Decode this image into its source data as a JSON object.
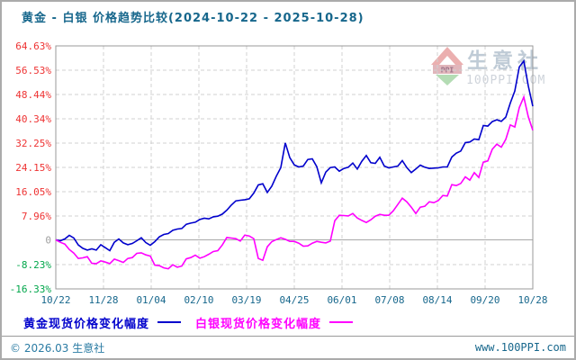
{
  "title": "黄金 - 白银 价格趋势比较(2024-10-22 - 2025-10-28)",
  "legend": [
    {
      "label": "黄金现货价格变化幅度",
      "color": "#0000cc"
    },
    {
      "label": "白银现货价格变化幅度",
      "color": "#ff00ff"
    }
  ],
  "footer": {
    "left": "© 2026.03 生意社",
    "right": "www.100PPI.com"
  },
  "watermark": {
    "brand": "生意社",
    "domain": "100PPI.COM",
    "logo_text": "PPI"
  },
  "colors": {
    "title": "#17678c",
    "axis_date": "#17678c",
    "grid": "#d0d0d0",
    "zero_line": "#a8a8a8",
    "plot_border": "#999999"
  },
  "chart_data": {
    "type": "line",
    "title": "黄金 - 白银 价格趋势比较(2024-10-22 - 2025-10-28)",
    "date_range": {
      "start": "2024-10-22",
      "end": "2025-10-28"
    },
    "grid": "dashed",
    "legend_position": "bottom",
    "ylim": [
      -16.33,
      64.63
    ],
    "y_ticks": [
      {
        "label": "64.63%",
        "value": 64.63,
        "color": "#ee3333"
      },
      {
        "label": "56.53%",
        "value": 56.53,
        "color": "#ee3333"
      },
      {
        "label": "48.44%",
        "value": 48.44,
        "color": "#ee3333"
      },
      {
        "label": "40.34%",
        "value": 40.34,
        "color": "#ee3333"
      },
      {
        "label": "32.25%",
        "value": 32.25,
        "color": "#ee3333"
      },
      {
        "label": "24.15%",
        "value": 24.15,
        "color": "#ee3333"
      },
      {
        "label": "16.05%",
        "value": 16.05,
        "color": "#ee3333"
      },
      {
        "label": "7.96%",
        "value": 7.96,
        "color": "#ee3333"
      },
      {
        "label": "0",
        "value": 0,
        "color": "#a0a0a0"
      },
      {
        "label": "-8.23%",
        "value": -8.23,
        "color": "#00a64a"
      },
      {
        "label": "-16.33%",
        "value": -16.33,
        "color": "#00a64a"
      }
    ],
    "x_ticks": [
      "10/22",
      "11/28",
      "01/04",
      "02/10",
      "03/19",
      "04/25",
      "06/01",
      "07/08",
      "08/14",
      "09/20",
      "10/28"
    ],
    "series": [
      {
        "name": "黄金现货价格变化幅度",
        "color": "#0000cc",
        "values": [
          0,
          -0.3,
          0.3,
          1.5,
          0.6,
          -1.7,
          -2.8,
          -3.4,
          -3,
          -3.4,
          -1.6,
          -2.6,
          -3.6,
          -0.8,
          0.3,
          -1,
          -1.6,
          -1.2,
          -0.3,
          0.7,
          -0.9,
          -1.8,
          -0.6,
          1,
          1.8,
          2.1,
          3.2,
          3.6,
          3.8,
          5.2,
          5.6,
          5.9,
          6.8,
          7.2,
          7,
          7.7,
          7.9,
          8.6,
          9.9,
          11.6,
          13,
          13.2,
          13.4,
          13.7,
          15.6,
          18.3,
          18.7,
          15.8,
          17.9,
          21.2,
          24.1,
          32.3,
          27.4,
          25,
          24.3,
          24.6,
          26.8,
          27,
          24.4,
          19,
          22.6,
          24.1,
          24.3,
          22.9,
          23.8,
          24.2,
          25.6,
          23.6,
          26.2,
          28.1,
          25.7,
          25.5,
          27.5,
          24.6,
          24,
          24.3,
          24.6,
          26.4,
          24.1,
          22.4,
          23.6,
          24.9,
          24.2,
          23.8,
          23.9,
          24,
          24.3,
          24.3,
          27.6,
          28.9,
          29.6,
          32.4,
          32.6,
          33.6,
          33.4,
          38.1,
          37.9,
          39.4,
          40,
          39.5,
          40.9,
          45.6,
          49.6,
          57.6,
          59.6,
          51.3,
          44.5
        ]
      },
      {
        "name": "白银现货价格变化幅度",
        "color": "#ff00ff",
        "values": [
          0,
          -0.8,
          -1.4,
          -3.2,
          -4.4,
          -6.2,
          -6,
          -5.6,
          -7.8,
          -7.9,
          -7,
          -7.4,
          -7.9,
          -6.4,
          -6.9,
          -7.5,
          -6.2,
          -5.9,
          -4.5,
          -4.3,
          -5,
          -5.4,
          -8.4,
          -8.6,
          -9.3,
          -9.6,
          -8.3,
          -9.1,
          -8.7,
          -6.3,
          -5.9,
          -5.1,
          -6.1,
          -5.6,
          -4.8,
          -3.9,
          -3.6,
          -1.7,
          0.8,
          0.6,
          0.4,
          -0.4,
          1.6,
          1.3,
          0.4,
          -6.2,
          -6.8,
          -2.3,
          -0.6,
          0.1,
          0.7,
          0.2,
          -0.5,
          -0.5,
          -1.1,
          -2.1,
          -2,
          -1.1,
          -0.5,
          -0.8,
          -1,
          -0.4,
          6.4,
          8.2,
          8.1,
          8,
          8.8,
          7.3,
          6.5,
          5.8,
          6.7,
          7.9,
          8.5,
          8.2,
          8.2,
          9.7,
          11.8,
          13.9,
          12.7,
          10.9,
          8.8,
          10.9,
          11.2,
          12.7,
          12.4,
          13.1,
          14.8,
          14.6,
          18.4,
          18.1,
          18.8,
          21,
          19.9,
          22.4,
          20.8,
          25.9,
          26.3,
          30.2,
          31.9,
          30.9,
          33.5,
          38.3,
          37.6,
          44.1,
          47.6,
          41,
          36.5
        ]
      }
    ]
  }
}
